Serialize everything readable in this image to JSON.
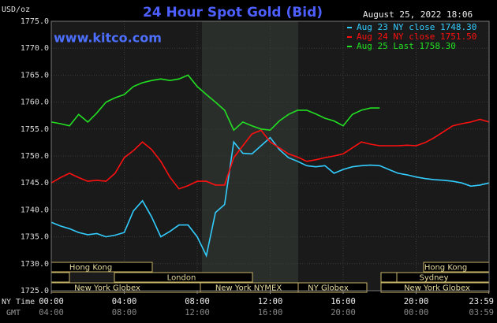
{
  "chart_data": {
    "type": "line",
    "title": "24 Hour Spot Gold (Bid)",
    "unit_label": "USD/oz",
    "watermark": "www.kitco.com",
    "timestamp": "August 25, 2022 18:06",
    "x_axis_label": "NY Time",
    "x2_axis_label": "GMT",
    "xlim": [
      0,
      24
    ],
    "xticks": [
      {
        "value": 0,
        "label": "00:00"
      },
      {
        "value": 4,
        "label": "04:00"
      },
      {
        "value": 8,
        "label": "08:00"
      },
      {
        "value": 12,
        "label": "12:00"
      },
      {
        "value": 16,
        "label": "16:00"
      },
      {
        "value": 20,
        "label": "20:00"
      },
      {
        "value": 23.983,
        "label": "23:59"
      }
    ],
    "gmt_ticks": [
      {
        "value": 0,
        "label": "04:00"
      },
      {
        "value": 4,
        "label": "08:00"
      },
      {
        "value": 8,
        "label": "12:00"
      },
      {
        "value": 12,
        "label": "16:00"
      },
      {
        "value": 16,
        "label": "20:00"
      },
      {
        "value": 20,
        "label": "00:00"
      },
      {
        "value": 23.983,
        "label": "03:59"
      }
    ],
    "ylim": [
      1725,
      1775
    ],
    "yticks": [
      {
        "value": 1725,
        "label": "1725.0"
      },
      {
        "value": 1730,
        "label": "1730.0"
      },
      {
        "value": 1735,
        "label": "1735.0"
      },
      {
        "value": 1740,
        "label": "1740.0"
      },
      {
        "value": 1745,
        "label": "1745.0"
      },
      {
        "value": 1750,
        "label": "1750.0"
      },
      {
        "value": 1755,
        "label": "1755.0"
      },
      {
        "value": 1760,
        "label": "1760.0"
      },
      {
        "value": 1765,
        "label": "1765.0"
      },
      {
        "value": 1770,
        "label": "1770.0"
      },
      {
        "value": 1775,
        "label": "1775.0"
      }
    ],
    "grid": true,
    "legend": "top-right",
    "x": [
      0,
      0.5,
      1,
      1.5,
      2,
      2.5,
      3,
      3.5,
      4,
      4.5,
      5,
      5.5,
      6,
      6.5,
      7,
      7.5,
      8,
      8.5,
      9,
      9.5,
      10,
      10.5,
      11,
      11.5,
      12,
      12.5,
      13,
      13.5,
      14,
      14.5,
      15,
      15.5,
      16,
      16.5,
      17,
      17.5,
      18,
      18.5,
      19,
      19.5,
      20,
      20.5,
      21,
      21.5,
      22,
      22.5,
      23,
      23.5,
      24
    ],
    "series": [
      {
        "name": "Aug 23 NY close 1748.30",
        "color": "#33ccff",
        "values": [
          1737.7,
          1737.0,
          1736.5,
          1735.8,
          1735.4,
          1735.6,
          1735.0,
          1735.3,
          1735.8,
          1739.8,
          1741.7,
          1738.7,
          1735.0,
          1736.0,
          1737.2,
          1737.2,
          1735.0,
          1731.5,
          1739.5,
          1741.0,
          1752.6,
          1750.5,
          1750.4,
          1751.9,
          1753.4,
          1751.2,
          1749.7,
          1749.0,
          1748.2,
          1748.0,
          1748.2,
          1746.8,
          1747.5,
          1748.0,
          1748.2,
          1748.3,
          1748.2,
          1747.5,
          1746.8,
          1746.5,
          1746.1,
          1745.8,
          1745.6,
          1745.5,
          1745.3,
          1745.0,
          1744.4,
          1744.6,
          1745.0
        ]
      },
      {
        "name": "Aug 24 NY close 1751.50",
        "color": "#ff1010",
        "values": [
          1745.0,
          1746.0,
          1746.8,
          1746.0,
          1745.3,
          1745.5,
          1745.3,
          1746.8,
          1749.7,
          1751.0,
          1752.6,
          1751.2,
          1749.0,
          1746.1,
          1743.9,
          1744.5,
          1745.3,
          1745.3,
          1744.6,
          1744.6,
          1749.7,
          1751.9,
          1754.1,
          1754.8,
          1752.6,
          1751.5,
          1750.4,
          1749.8,
          1749.0,
          1749.3,
          1749.7,
          1750.0,
          1750.4,
          1751.5,
          1752.6,
          1752.2,
          1751.9,
          1751.9,
          1751.9,
          1752.0,
          1751.9,
          1752.5,
          1753.4,
          1754.5,
          1755.6,
          1756.0,
          1756.3,
          1756.8,
          1756.3
        ]
      },
      {
        "name": "Aug 25 Last 1758.30",
        "color": "#22e022",
        "values": [
          1756.3,
          1756.0,
          1755.6,
          1757.7,
          1756.3,
          1758.0,
          1760.0,
          1760.8,
          1761.4,
          1762.9,
          1763.6,
          1764.0,
          1764.3,
          1764.0,
          1764.3,
          1765.0,
          1762.9,
          1761.4,
          1760.0,
          1758.5,
          1754.8,
          1756.3,
          1755.6,
          1755.0,
          1754.8,
          1756.5,
          1757.7,
          1758.5,
          1758.5,
          1757.8,
          1757.0,
          1756.5,
          1755.6,
          1757.7,
          1758.5,
          1758.9,
          1758.9,
          null,
          null,
          null,
          null,
          null,
          null,
          null,
          null,
          null,
          null,
          null,
          null
        ]
      }
    ],
    "sessions": [
      "Hong Kong",
      "Hong Kong",
      "London",
      "Sydney",
      "New York Globex",
      "New York NYMEX",
      "NY Globex",
      "New York Globex"
    ]
  }
}
